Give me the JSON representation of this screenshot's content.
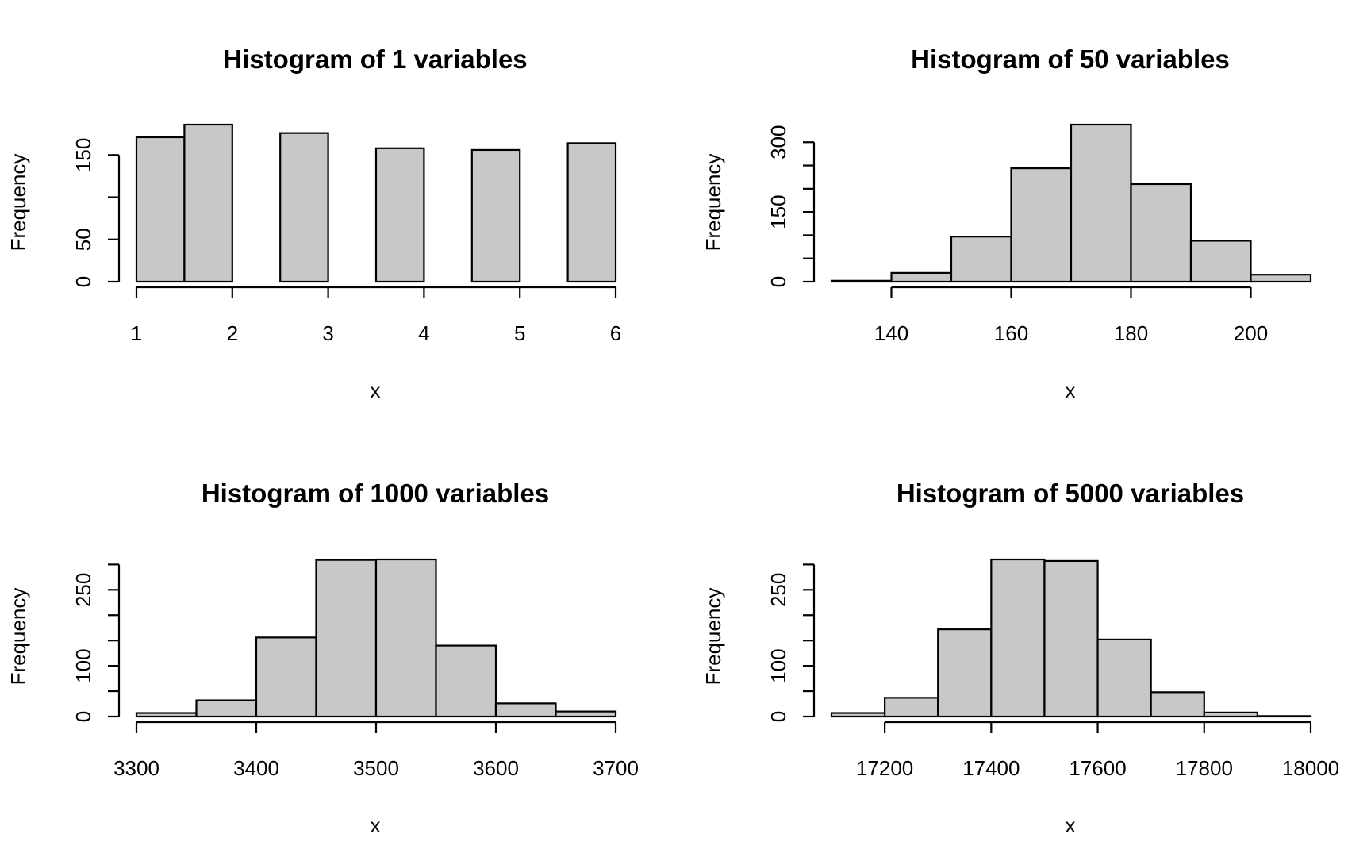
{
  "chart_data": [
    {
      "type": "bar",
      "title": "Histogram of 1 variables",
      "xlabel": "x",
      "ylabel": "Frequency",
      "bins": [
        [
          1,
          1.5
        ],
        [
          1.5,
          2
        ],
        [
          2,
          2.5
        ],
        [
          2.5,
          3
        ],
        [
          3,
          3.5
        ],
        [
          3.5,
          4
        ],
        [
          4,
          4.5
        ],
        [
          4.5,
          5
        ],
        [
          5,
          5.5
        ],
        [
          5.5,
          6
        ]
      ],
      "values": [
        171,
        186,
        0,
        176,
        0,
        158,
        0,
        156,
        0,
        164
      ],
      "xlim": [
        1,
        6
      ],
      "ylim": [
        0,
        186
      ],
      "xticks": [
        1,
        2,
        3,
        4,
        5,
        6
      ],
      "yticks": [
        0,
        50,
        100,
        150
      ],
      "ytick_labels": [
        "0",
        "50",
        "",
        "150"
      ],
      "grid": false
    },
    {
      "type": "bar",
      "title": "Histogram of 50 variables",
      "xlabel": "x",
      "ylabel": "Frequency",
      "bins": [
        [
          130,
          140
        ],
        [
          140,
          150
        ],
        [
          150,
          160
        ],
        [
          160,
          170
        ],
        [
          170,
          180
        ],
        [
          180,
          190
        ],
        [
          190,
          200
        ],
        [
          200,
          210
        ]
      ],
      "values": [
        2,
        19,
        97,
        244,
        338,
        210,
        88,
        15
      ],
      "xlim": [
        130,
        210
      ],
      "ylim": [
        0,
        338
      ],
      "xticks": [
        140,
        160,
        180,
        200
      ],
      "yticks": [
        0,
        50,
        100,
        150,
        200,
        250,
        300
      ],
      "ytick_labels": [
        "0",
        "",
        "",
        "150",
        "",
        "",
        "300"
      ],
      "grid": false
    },
    {
      "type": "bar",
      "title": "Histogram of 1000 variables",
      "xlabel": "x",
      "ylabel": "Frequency",
      "bins": [
        [
          3300,
          3350
        ],
        [
          3350,
          3400
        ],
        [
          3400,
          3450
        ],
        [
          3450,
          3500
        ],
        [
          3500,
          3550
        ],
        [
          3550,
          3600
        ],
        [
          3600,
          3650
        ],
        [
          3650,
          3700
        ]
      ],
      "values": [
        7,
        32,
        156,
        309,
        310,
        140,
        26,
        10
      ],
      "xlim": [
        3300,
        3700
      ],
      "ylim": [
        0,
        310
      ],
      "xticks": [
        3300,
        3400,
        3500,
        3600,
        3700
      ],
      "yticks": [
        0,
        50,
        100,
        150,
        200,
        250,
        300
      ],
      "ytick_labels": [
        "0",
        "",
        "100",
        "",
        "",
        "250",
        ""
      ],
      "grid": false
    },
    {
      "type": "bar",
      "title": "Histogram of 5000 variables",
      "xlabel": "x",
      "ylabel": "Frequency",
      "bins": [
        [
          17100,
          17200
        ],
        [
          17200,
          17300
        ],
        [
          17300,
          17400
        ],
        [
          17400,
          17500
        ],
        [
          17500,
          17600
        ],
        [
          17600,
          17700
        ],
        [
          17700,
          17800
        ],
        [
          17800,
          17900
        ],
        [
          17900,
          18000
        ]
      ],
      "values": [
        7,
        37,
        172,
        310,
        307,
        152,
        48,
        8,
        1
      ],
      "xlim": [
        17100,
        18000
      ],
      "ylim": [
        0,
        310
      ],
      "xticks": [
        17200,
        17400,
        17600,
        17800,
        18000
      ],
      "yticks": [
        0,
        50,
        100,
        150,
        200,
        250,
        300
      ],
      "ytick_labels": [
        "0",
        "",
        "100",
        "",
        "",
        "250",
        ""
      ],
      "grid": false
    }
  ]
}
